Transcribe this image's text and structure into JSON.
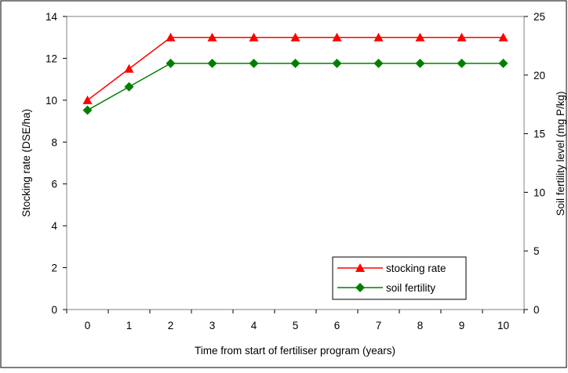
{
  "chart_data": {
    "type": "line",
    "title": "",
    "xlabel": "Time from start of fertiliser program (years)",
    "ylabel_left": "Stocking rate (DSE/ha)",
    "ylabel_right": "Soil fertility level (mg P/kg)",
    "x": [
      0,
      1,
      2,
      3,
      4,
      5,
      6,
      7,
      8,
      9,
      10
    ],
    "xlim": [
      -0.5,
      10.5
    ],
    "ylim_left": [
      0,
      14
    ],
    "ylim_right": [
      0,
      25
    ],
    "yticks_left": [
      0,
      2,
      4,
      6,
      8,
      10,
      12,
      14
    ],
    "yticks_right": [
      0,
      5,
      10,
      15,
      20,
      25
    ],
    "grid": false,
    "legend_position": "bottom-right",
    "series": [
      {
        "name": "stocking rate",
        "axis": "left",
        "color": "#ff0000",
        "marker": "triangle",
        "values": [
          10,
          11.5,
          13,
          13,
          13,
          13,
          13,
          13,
          13,
          13,
          13
        ]
      },
      {
        "name": "soil fertility",
        "axis": "right",
        "color": "#008000",
        "marker": "diamond",
        "values": [
          17,
          19,
          21,
          21,
          21,
          21,
          21,
          21,
          21,
          21,
          21
        ]
      }
    ]
  }
}
